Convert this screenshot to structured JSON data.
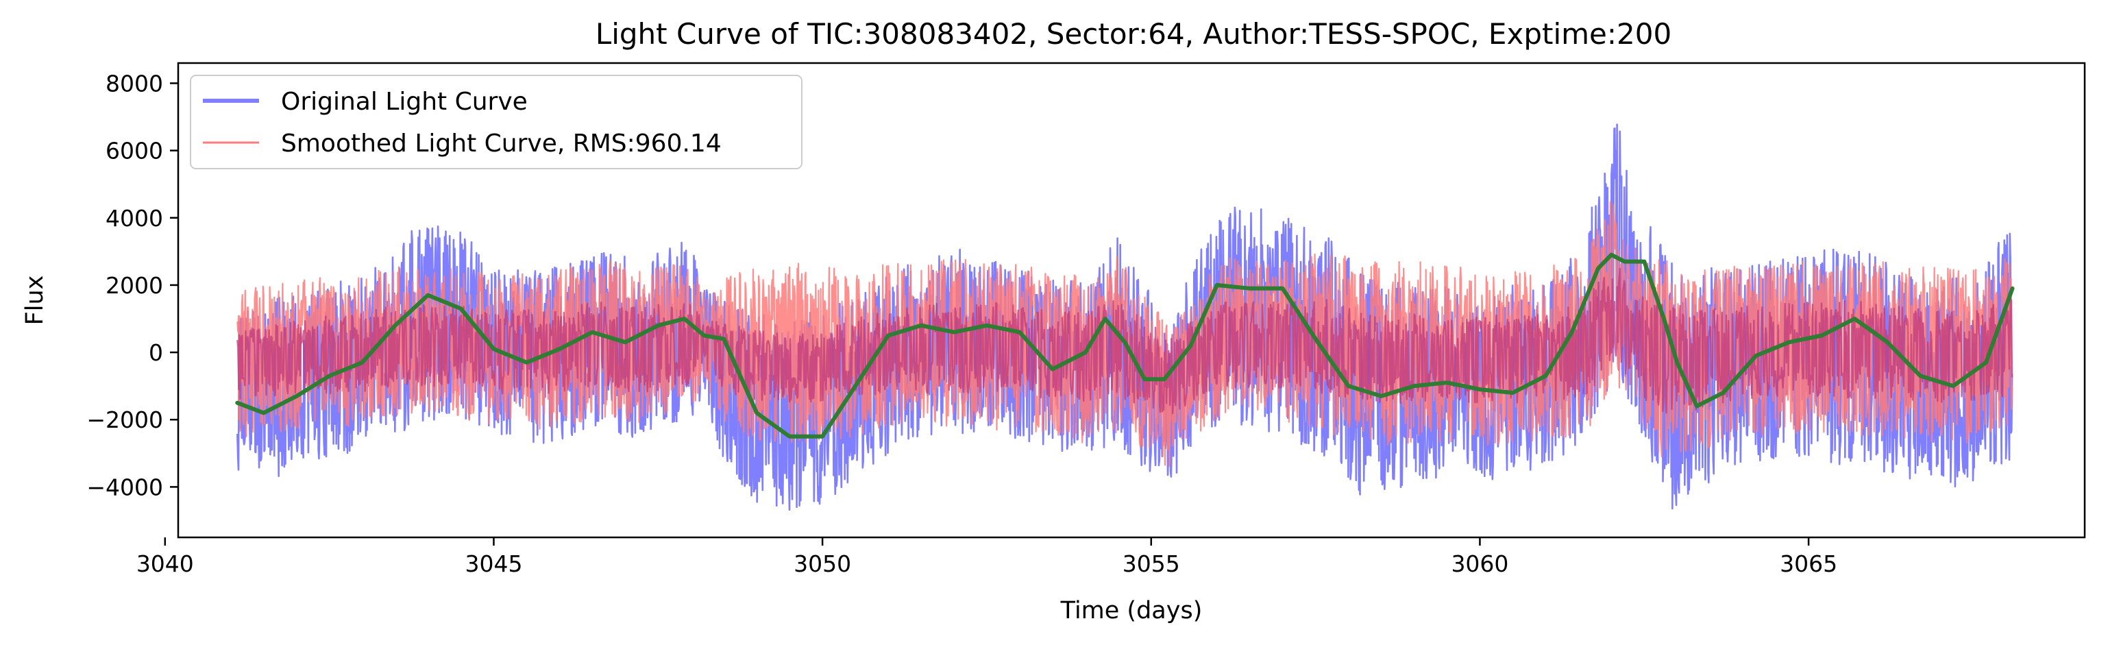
{
  "chart_data": {
    "type": "line",
    "title": "Light Curve of TIC:308083402, Sector:64, Author:TESS-SPOC, Exptime:200",
    "xlabel": "Time (days)",
    "ylabel": "Flux",
    "xlim": [
      3040.2,
      3069.2
    ],
    "ylim": [
      -5500,
      8600
    ],
    "xticks": [
      3040,
      3045,
      3050,
      3055,
      3060,
      3065
    ],
    "yticks": [
      -4000,
      -2000,
      0,
      2000,
      4000,
      6000,
      8000
    ],
    "ytick_labels": [
      "−4000",
      "−2000",
      "0",
      "2000",
      "4000",
      "6000",
      "8000"
    ],
    "grid": false,
    "legend_position": "upper-left",
    "colors": {
      "original": "#7f7fff",
      "smoothed": "#ff7a7a",
      "overlap": "#c0397a",
      "trend": "#2e7d32"
    },
    "series": [
      {
        "name": "Original Light Curve",
        "envelope": {
          "x": [
            3041.1,
            3041.6,
            3042.2,
            3042.8,
            3043.3,
            3043.8,
            3044.3,
            3044.8,
            3045.2,
            3045.7,
            3046.2,
            3046.7,
            3047.2,
            3047.6,
            3048.0,
            3048.2,
            3048.5,
            3049.0,
            3049.5,
            3050.0,
            3050.5,
            3051.0,
            3051.5,
            3052.0,
            3052.5,
            3053.0,
            3053.5,
            3054.0,
            3054.5,
            3055.0,
            3055.3,
            3055.7,
            3056.2,
            3056.7,
            3057.2,
            3057.7,
            3058.2,
            3058.7,
            3059.2,
            3059.7,
            3060.2,
            3060.7,
            3061.2,
            3061.6,
            3061.9,
            3062.1,
            3062.3,
            3062.6,
            3062.9,
            3063.2,
            3063.6,
            3064.1,
            3064.6,
            3065.1,
            3065.6,
            3066.1,
            3066.6,
            3067.1,
            3067.6,
            3068.1
          ],
          "upper": [
            1200,
            1600,
            1800,
            2200,
            2800,
            3800,
            3900,
            3200,
            2600,
            2400,
            2800,
            3200,
            2600,
            3100,
            3400,
            2000,
            1600,
            1200,
            1000,
            1300,
            1800,
            2400,
            2800,
            3100,
            2900,
            2600,
            2200,
            2200,
            3600,
            1800,
            800,
            3000,
            4400,
            4300,
            3900,
            3600,
            2400,
            2100,
            2200,
            1800,
            2000,
            2000,
            2200,
            3600,
            5800,
            8000,
            4200,
            3800,
            2800,
            2400,
            2600,
            2600,
            2800,
            3000,
            3200,
            2800,
            2400,
            2200,
            2400,
            4000
          ],
          "lower": [
            -3700,
            -3900,
            -3300,
            -3000,
            -2600,
            -2200,
            -2000,
            -2300,
            -2600,
            -2800,
            -2500,
            -2300,
            -2600,
            -2200,
            -2000,
            -1200,
            -3400,
            -4500,
            -4800,
            -4600,
            -3800,
            -3000,
            -2600,
            -2400,
            -2500,
            -2700,
            -2900,
            -3100,
            -2800,
            -3700,
            -4100,
            -2600,
            -2100,
            -2400,
            -2700,
            -3200,
            -4300,
            -4200,
            -3800,
            -3600,
            -3800,
            -3600,
            -3300,
            -2600,
            -1400,
            -600,
            -1600,
            -3300,
            -4700,
            -4300,
            -3700,
            -3300,
            -3100,
            -3200,
            -3400,
            -3600,
            -3800,
            -4100,
            -3800,
            -3200
          ]
        }
      },
      {
        "name": "Smoothed Light Curve, RMS:960.14",
        "envelope": {
          "x": [
            3041.1,
            3041.6,
            3042.2,
            3042.8,
            3043.3,
            3043.8,
            3044.3,
            3044.8,
            3045.2,
            3045.7,
            3046.2,
            3046.7,
            3047.2,
            3047.6,
            3048.0,
            3048.2,
            3048.5,
            3049.0,
            3049.5,
            3050.0,
            3050.5,
            3051.0,
            3051.5,
            3052.0,
            3052.5,
            3053.0,
            3053.5,
            3054.0,
            3054.5,
            3055.0,
            3055.3,
            3055.7,
            3056.2,
            3056.7,
            3057.2,
            3057.7,
            3058.2,
            3058.7,
            3059.2,
            3059.7,
            3060.2,
            3060.7,
            3061.2,
            3061.6,
            3061.9,
            3062.1,
            3062.3,
            3062.6,
            3062.9,
            3063.2,
            3063.6,
            3064.1,
            3064.6,
            3065.1,
            3065.6,
            3066.1,
            3066.6,
            3067.1,
            3067.6,
            3068.1
          ],
          "upper": [
            2000,
            2100,
            2200,
            2300,
            2500,
            2600,
            2600,
            2400,
            2300,
            2400,
            2600,
            2800,
            2500,
            2600,
            2700,
            1800,
            2200,
            2600,
            2700,
            2600,
            2500,
            2700,
            2700,
            2800,
            2700,
            2600,
            2400,
            2300,
            2900,
            1500,
            800,
            2200,
            2800,
            2700,
            2800,
            3000,
            2800,
            2700,
            2700,
            2600,
            2400,
            2500,
            2700,
            3000,
            4200,
            4900,
            3400,
            2900,
            2700,
            2400,
            2600,
            2600,
            2700,
            2700,
            2800,
            2700,
            2600,
            2500,
            2500,
            3000
          ],
          "lower": [
            -2600,
            -2400,
            -2300,
            -2200,
            -2000,
            -1800,
            -1900,
            -2100,
            -2300,
            -2400,
            -2200,
            -2100,
            -2200,
            -2000,
            -1800,
            -1000,
            -2200,
            -2600,
            -2700,
            -2700,
            -2500,
            -2300,
            -2200,
            -2200,
            -2300,
            -2400,
            -2500,
            -2700,
            -2400,
            -3100,
            -3500,
            -2500,
            -1900,
            -2000,
            -2100,
            -2400,
            -2700,
            -2800,
            -2700,
            -2700,
            -2800,
            -2700,
            -2600,
            -2400,
            -1600,
            -1000,
            -1700,
            -2900,
            -3500,
            -3200,
            -2800,
            -2500,
            -2400,
            -2400,
            -2500,
            -2500,
            -2600,
            -2700,
            -2700,
            -2300
          ]
        }
      }
    ],
    "trend": {
      "x": [
        3041.1,
        3041.5,
        3042.0,
        3042.5,
        3043.0,
        3043.5,
        3044.0,
        3044.5,
        3045.0,
        3045.5,
        3046.0,
        3046.5,
        3047.0,
        3047.5,
        3047.9,
        3048.2,
        3048.5,
        3049.0,
        3049.5,
        3050.0,
        3050.5,
        3051.0,
        3051.5,
        3052.0,
        3052.5,
        3053.0,
        3053.5,
        3054.0,
        3054.3,
        3054.6,
        3054.9,
        3055.2,
        3055.6,
        3056.0,
        3056.5,
        3057.0,
        3057.5,
        3058.0,
        3058.5,
        3059.0,
        3059.5,
        3060.0,
        3060.5,
        3061.0,
        3061.4,
        3061.8,
        3062.0,
        3062.2,
        3062.5,
        3062.8,
        3063.0,
        3063.3,
        3063.7,
        3064.2,
        3064.7,
        3065.2,
        3065.7,
        3066.2,
        3066.7,
        3067.2,
        3067.7,
        3068.1
      ],
      "y": [
        -1500,
        -1800,
        -1300,
        -700,
        -300,
        800,
        1700,
        1300,
        100,
        -300,
        100,
        600,
        300,
        800,
        1000,
        500,
        400,
        -1800,
        -2500,
        -2500,
        -1000,
        500,
        800,
        600,
        800,
        600,
        -500,
        0,
        1000,
        300,
        -800,
        -800,
        200,
        2000,
        1900,
        1900,
        400,
        -1000,
        -1300,
        -1000,
        -900,
        -1100,
        -1200,
        -700,
        600,
        2500,
        2900,
        2700,
        2700,
        1000,
        -300,
        -1600,
        -1200,
        -100,
        300,
        500,
        1000,
        300,
        -700,
        -1000,
        -300,
        1900
      ]
    }
  }
}
